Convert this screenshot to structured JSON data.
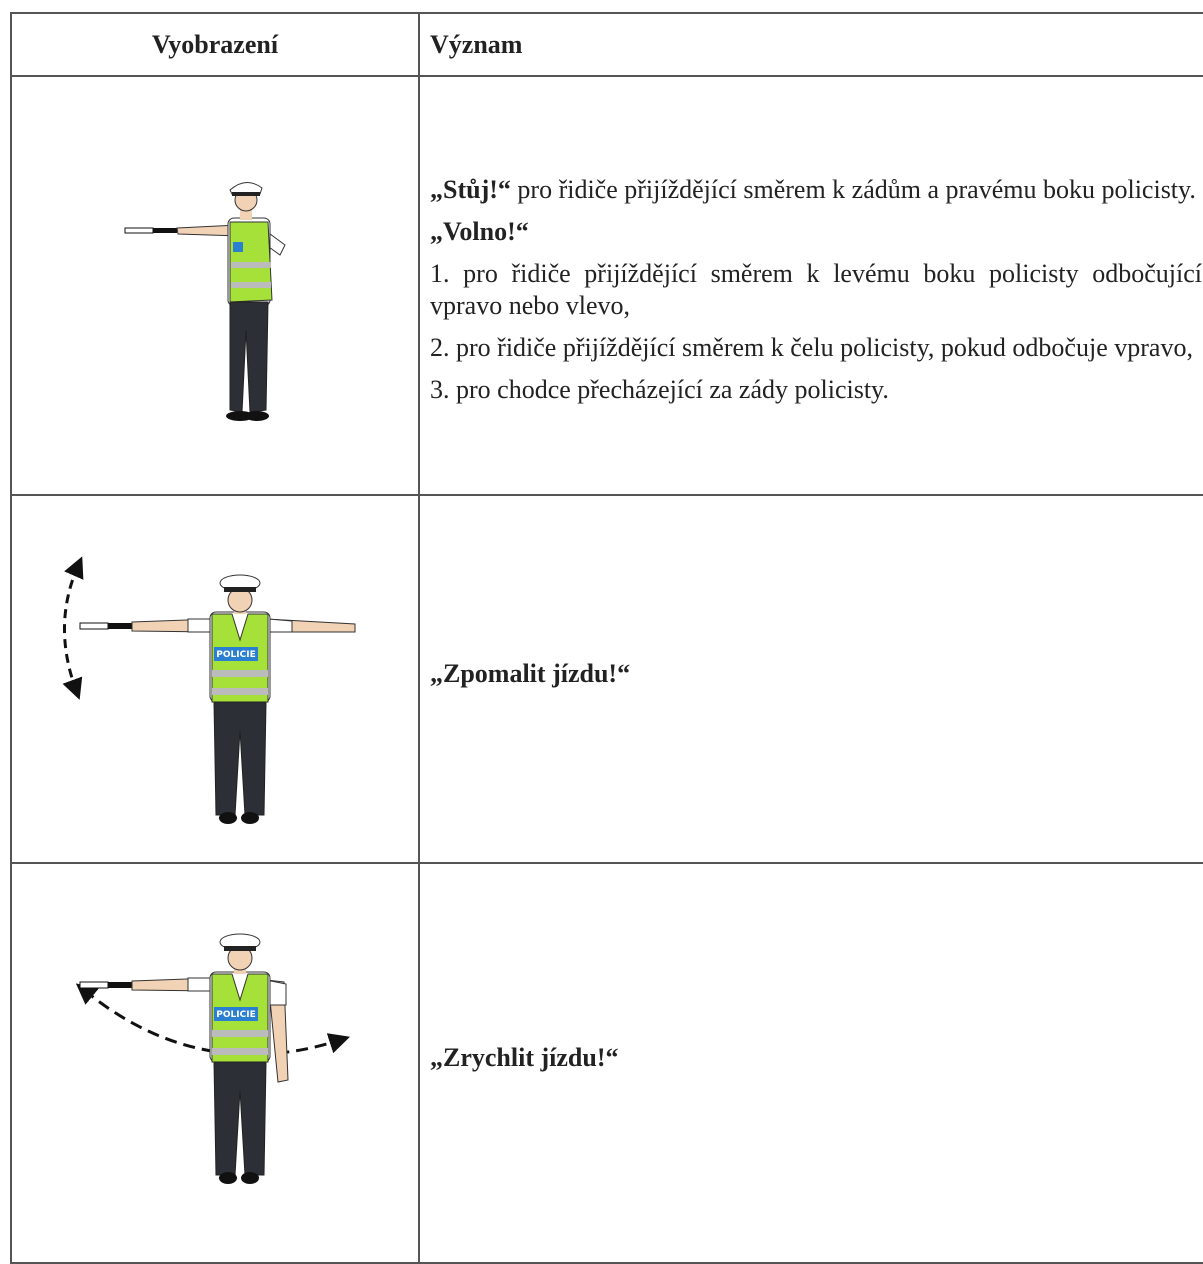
{
  "table": {
    "header": [
      "Vyobrazení",
      "Význam"
    ],
    "rows": [
      {
        "paragraphs": [
          {
            "bold": "„Stůj!“",
            "text": "pro řidiče přijíždějící směrem k zádům a pravému boku policisty."
          },
          {
            "bold": "„Volno!“"
          },
          {
            "text": "1. pro řidiče přijíždějící směrem k levému boku policisty odbočující vpravo nebo vlevo,"
          },
          {
            "text": "2. pro řidiče přijíždějící směrem k čelu policisty, pokud odbočuje vpravo,"
          },
          {
            "text": "3. pro chodce přecházející za zády policisty."
          }
        ]
      },
      {
        "paragraphs": [
          {
            "bold": "„Zpomalit jízdu!“"
          }
        ]
      },
      {
        "paragraphs": [
          {
            "bold": "„Zrychlit jízdu!“"
          }
        ]
      }
    ]
  },
  "vest_label": "POLICIE"
}
